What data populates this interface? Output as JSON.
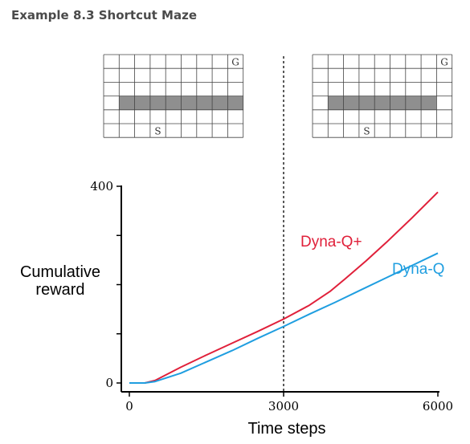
{
  "heading": "Example 8.3 Shortcut Maze",
  "mazes": [
    {
      "goal_label": "G",
      "start_label": "S",
      "cols": 9,
      "rows": 6,
      "wall": {
        "row": 3,
        "col_start": 1,
        "col_end": 8
      },
      "goal": {
        "row": 0,
        "col": 8
      },
      "start": {
        "row": 5,
        "col": 3
      }
    },
    {
      "goal_label": "G",
      "start_label": "S",
      "cols": 9,
      "rows": 6,
      "wall": {
        "row": 3,
        "col_start": 1,
        "col_end": 7
      },
      "goal": {
        "row": 0,
        "col": 8
      },
      "start": {
        "row": 5,
        "col": 3
      }
    }
  ],
  "chart_data": {
    "type": "line",
    "title": "",
    "xlabel": "Time steps",
    "ylabel_lines": [
      "Cumulative",
      "reward"
    ],
    "xlim": [
      0,
      6000
    ],
    "ylim": [
      0,
      400
    ],
    "x_ticks": [
      0,
      3000,
      6000
    ],
    "x_tick_labels": [
      "0",
      "3000",
      "6000"
    ],
    "y_ticks": [
      0,
      100,
      200,
      300,
      400
    ],
    "y_tick_labels": [
      "0",
      "",
      "",
      "",
      "400"
    ],
    "vline_x": 3000,
    "grid": false,
    "series": [
      {
        "name": "Dyna-Q+",
        "color": "#e0203a",
        "x": [
          0,
          300,
          500,
          1000,
          1500,
          2000,
          2500,
          3000,
          3500,
          3900,
          4200,
          4600,
          5000,
          5500,
          6000
        ],
        "y": [
          0,
          0,
          5,
          32,
          57,
          81,
          105,
          130,
          158,
          186,
          212,
          248,
          286,
          336,
          388
        ]
      },
      {
        "name": "Dyna-Q",
        "color": "#1f9ee0",
        "x": [
          0,
          300,
          500,
          1000,
          1500,
          2000,
          2500,
          3000,
          3500,
          4000,
          4500,
          5000,
          5500,
          6000
        ],
        "y": [
          0,
          0,
          3,
          20,
          43,
          66,
          91,
          115,
          140,
          164,
          189,
          214,
          239,
          264
        ]
      }
    ]
  }
}
